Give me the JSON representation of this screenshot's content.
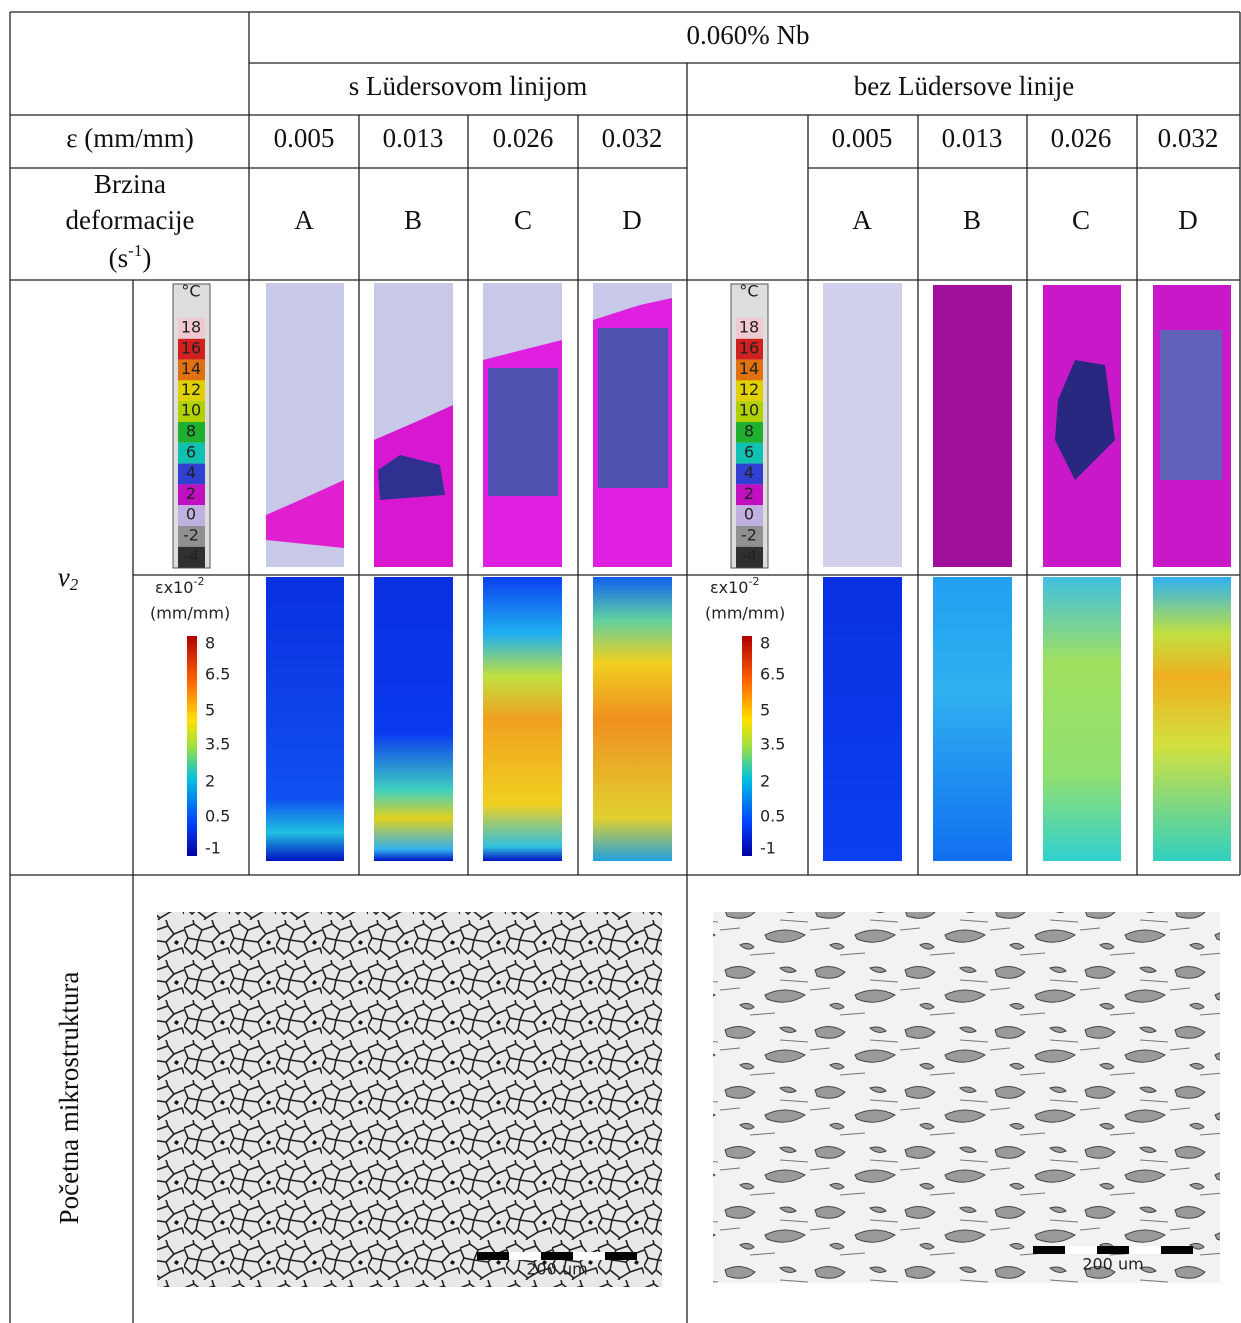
{
  "header": {
    "title": "0.060% Nb"
  },
  "columns": [
    {
      "title": "s Lüdersovom linijom",
      "strains": [
        "0.005",
        "0.013",
        "0.026",
        "0.032"
      ],
      "letters": [
        "A",
        "B",
        "C",
        "D"
      ],
      "scale_bar": "200 um"
    },
    {
      "title": "bez Lüdersove linije",
      "strains": [
        "0.005",
        "0.013",
        "0.026",
        "0.032"
      ],
      "letters": [
        "A",
        "B",
        "C",
        "D"
      ],
      "scale_bar": "200 um"
    }
  ],
  "row_labels": {
    "strain": "ε (mm/mm)",
    "rate_lines": [
      "Brzina",
      "deformacije"
    ],
    "rate_unit": "(s",
    "rate_exp": "-1",
    "rate_close": ")",
    "v": "v",
    "v_sub": "2",
    "microstructure": "Početna mikrostruktura"
  },
  "colorbars": {
    "temp_unit": "°C",
    "temp_ticks": [
      "18",
      "16",
      "14",
      "12",
      "10",
      "8",
      "6",
      "4",
      "2",
      "0",
      "-2",
      "-4"
    ],
    "strain_label": "εx10",
    "strain_exp": "-2",
    "strain_unit": "(mm/mm)",
    "strain_ticks": [
      "8",
      "6.5",
      "5",
      "3.5",
      "2",
      "0.5",
      "-1"
    ]
  }
}
